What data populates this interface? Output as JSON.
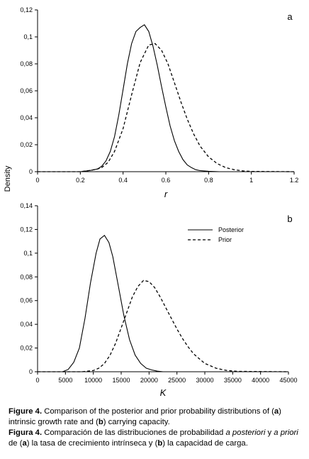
{
  "chart_data": [
    {
      "type": "line",
      "panel_label": "a",
      "xlabel": "r",
      "ylabel": "Density",
      "xlim": [
        0,
        1.2
      ],
      "ylim": [
        0,
        0.12
      ],
      "xticks": [
        "0",
        "0.2",
        "0.4",
        "0.6",
        "0.8",
        "1",
        "1.2"
      ],
      "yticks": [
        "0",
        "0.02",
        "0.04",
        "0.06",
        "0.08",
        "0.1",
        "0.12"
      ],
      "grid": false,
      "series": [
        {
          "style": "solid",
          "x": [
            0,
            0.2,
            0.25,
            0.28,
            0.3,
            0.32,
            0.34,
            0.36,
            0.38,
            0.4,
            0.42,
            0.44,
            0.46,
            0.48,
            0.5,
            0.52,
            0.54,
            0.56,
            0.58,
            0.6,
            0.62,
            0.64,
            0.66,
            0.68,
            0.7,
            0.72,
            0.74,
            0.76,
            0.8,
            0.85,
            1.2
          ],
          "y": [
            0,
            0,
            0.001,
            0.002,
            0.004,
            0.008,
            0.015,
            0.026,
            0.042,
            0.061,
            0.08,
            0.095,
            0.104,
            0.107,
            0.109,
            0.104,
            0.093,
            0.079,
            0.063,
            0.048,
            0.034,
            0.023,
            0.015,
            0.009,
            0.005,
            0.003,
            0.0015,
            0.0008,
            0.0003,
            0,
            0
          ]
        },
        {
          "style": "dashed",
          "x": [
            0,
            0.2,
            0.25,
            0.28,
            0.3,
            0.33,
            0.36,
            0.4,
            0.44,
            0.48,
            0.52,
            0.55,
            0.58,
            0.61,
            0.64,
            0.67,
            0.7,
            0.73,
            0.76,
            0.8,
            0.84,
            0.88,
            0.92,
            0.96,
            1.0,
            1.2
          ],
          "y": [
            0,
            0,
            0.001,
            0.002,
            0.003,
            0.007,
            0.015,
            0.032,
            0.057,
            0.081,
            0.094,
            0.095,
            0.09,
            0.08,
            0.066,
            0.052,
            0.039,
            0.028,
            0.019,
            0.011,
            0.006,
            0.003,
            0.0015,
            0.0006,
            0.0002,
            0
          ]
        }
      ]
    },
    {
      "type": "line",
      "panel_label": "b",
      "xlabel": "K",
      "ylabel": "",
      "xlim": [
        0,
        45000
      ],
      "ylim": [
        0,
        0.14
      ],
      "xticks": [
        "0",
        "5000",
        "10000",
        "15000",
        "20000",
        "25000",
        "30000",
        "35000",
        "40000",
        "45000"
      ],
      "yticks": [
        "0",
        "0.02",
        "0.04",
        "0.06",
        "0.08",
        "0.1",
        "0.12",
        "0.14"
      ],
      "grid": false,
      "legend": "top-right",
      "series": [
        {
          "name": "Posterior",
          "style": "solid",
          "x": [
            0,
            4500,
            5500,
            6500,
            7500,
            8500,
            9500,
            10500,
            11200,
            12000,
            12800,
            13500,
            14500,
            15500,
            16500,
            17500,
            18500,
            19500,
            20500,
            21500,
            22500,
            45000
          ],
          "y": [
            0,
            0,
            0.002,
            0.008,
            0.02,
            0.045,
            0.075,
            0.1,
            0.112,
            0.115,
            0.109,
            0.097,
            0.072,
            0.047,
            0.027,
            0.014,
            0.007,
            0.003,
            0.0015,
            0.0005,
            0,
            0
          ]
        },
        {
          "name": "Prior",
          "style": "dashed",
          "x": [
            0,
            8000,
            10000,
            11000,
            12000,
            13000,
            14000,
            15000,
            16000,
            17000,
            18000,
            19000,
            20000,
            21000,
            22000,
            23000,
            24000,
            25000,
            26000,
            27000,
            28000,
            29000,
            30000,
            31000,
            32000,
            33000,
            34000,
            36000,
            45000
          ],
          "y": [
            0,
            0,
            0.001,
            0.003,
            0.007,
            0.014,
            0.024,
            0.037,
            0.05,
            0.063,
            0.072,
            0.077,
            0.076,
            0.071,
            0.063,
            0.054,
            0.045,
            0.036,
            0.028,
            0.021,
            0.015,
            0.011,
            0.007,
            0.005,
            0.003,
            0.002,
            0.001,
            0.0003,
            0
          ]
        }
      ]
    }
  ],
  "caption": {
    "en_label": "Figure 4.",
    "en_1": " Comparison of the posterior and prior probability distributions of (",
    "en_a": "a",
    "en_2": ") intrinsic growth rate and (",
    "en_b": "b",
    "en_3": ") carrying capacity.",
    "es_label": "Figura 4.",
    "es_1": " Comparación de las distribuciones de probabilidad ",
    "es_post": "a posteriori",
    "es_2": " y ",
    "es_prior": "a priori",
    "es_3": " de (",
    "es_a": "a",
    "es_4": ") la tasa de crecimiento intrínseca y (",
    "es_b": "b",
    "es_5": ") la capacidad de carga."
  }
}
